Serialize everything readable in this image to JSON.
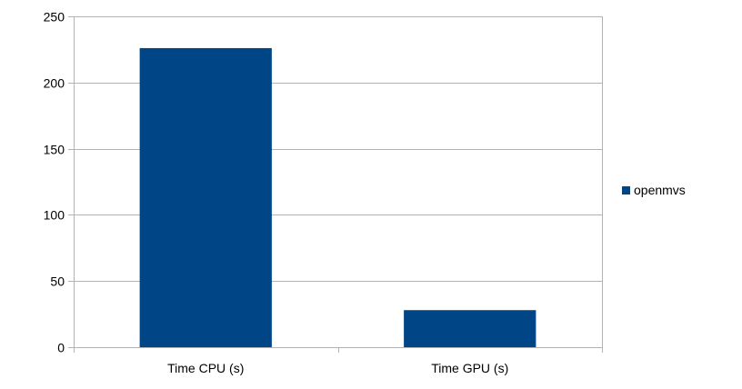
{
  "chart_data": {
    "type": "bar",
    "categories": [
      "Time CPU (s)",
      "Time GPU (s)"
    ],
    "series": [
      {
        "name": "openmvs",
        "values": [
          226,
          28
        ],
        "color": "#004586"
      }
    ],
    "ylim": [
      0,
      250
    ],
    "yticks": [
      0,
      50,
      100,
      150,
      200,
      250
    ],
    "grid": true,
    "legend_position": "right",
    "title": "",
    "xlabel": "",
    "ylabel": ""
  }
}
